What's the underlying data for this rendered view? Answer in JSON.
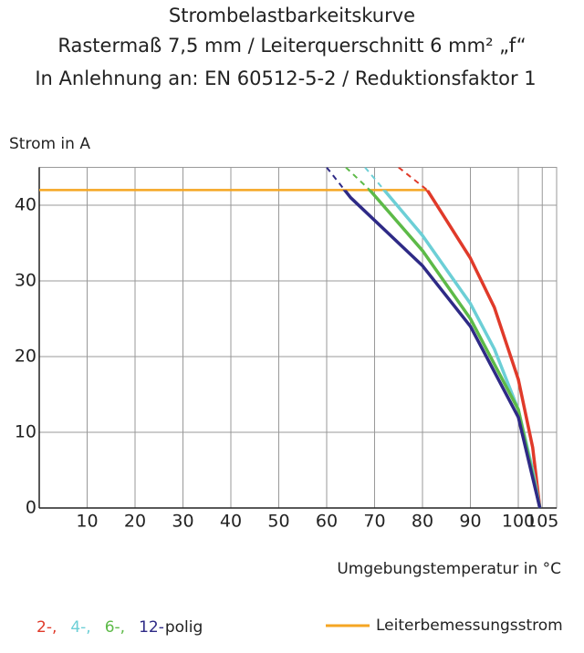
{
  "chart_data": {
    "type": "line",
    "title": [
      "Strombelastbarkeitskurve",
      "Rastermaß 7,5 mm / Leiterquerschnitt 6 mm² „f“",
      "In Anlehnung an: EN 60512-5-2 / Reduktionsfaktor 1"
    ],
    "y_label": "Strom in A",
    "x_label": "Umgebungstemperatur in °C",
    "xlim": [
      0,
      108
    ],
    "ylim": [
      0,
      45
    ],
    "xticks": [
      10,
      20,
      30,
      40,
      50,
      60,
      70,
      80,
      90,
      100,
      105
    ],
    "yticks": [
      0,
      10,
      20,
      30,
      40
    ],
    "grid": true,
    "series": [
      {
        "name": "2-,",
        "color": "#e03a2a",
        "x": [
          75,
          81,
          85,
          90,
          95,
          100,
          103,
          104.5
        ],
        "values": [
          45,
          42,
          38,
          33,
          26.5,
          17,
          8,
          0
        ]
      },
      {
        "name": "4-,",
        "color": "#6ccfd6",
        "x": [
          68,
          72,
          80,
          90,
          95,
          100,
          103,
          104.5
        ],
        "values": [
          45,
          42,
          36,
          27,
          21,
          13,
          5,
          0
        ]
      },
      {
        "name": "6-,",
        "color": "#5dba48",
        "x": [
          64,
          69,
          80,
          90,
          100,
          104.5
        ],
        "values": [
          45,
          42,
          34,
          25,
          13,
          0
        ]
      },
      {
        "name": "12-",
        "color": "#2e2a86",
        "x": [
          60,
          65,
          80,
          90,
          100,
          104.5
        ],
        "values": [
          45,
          41,
          32,
          24,
          12,
          0
        ]
      }
    ],
    "legend_suffix": "polig",
    "reference_line": {
      "name": "Leiterbemessungsstrom",
      "value": 42,
      "x_end": 81,
      "color": "#f5a623"
    }
  }
}
